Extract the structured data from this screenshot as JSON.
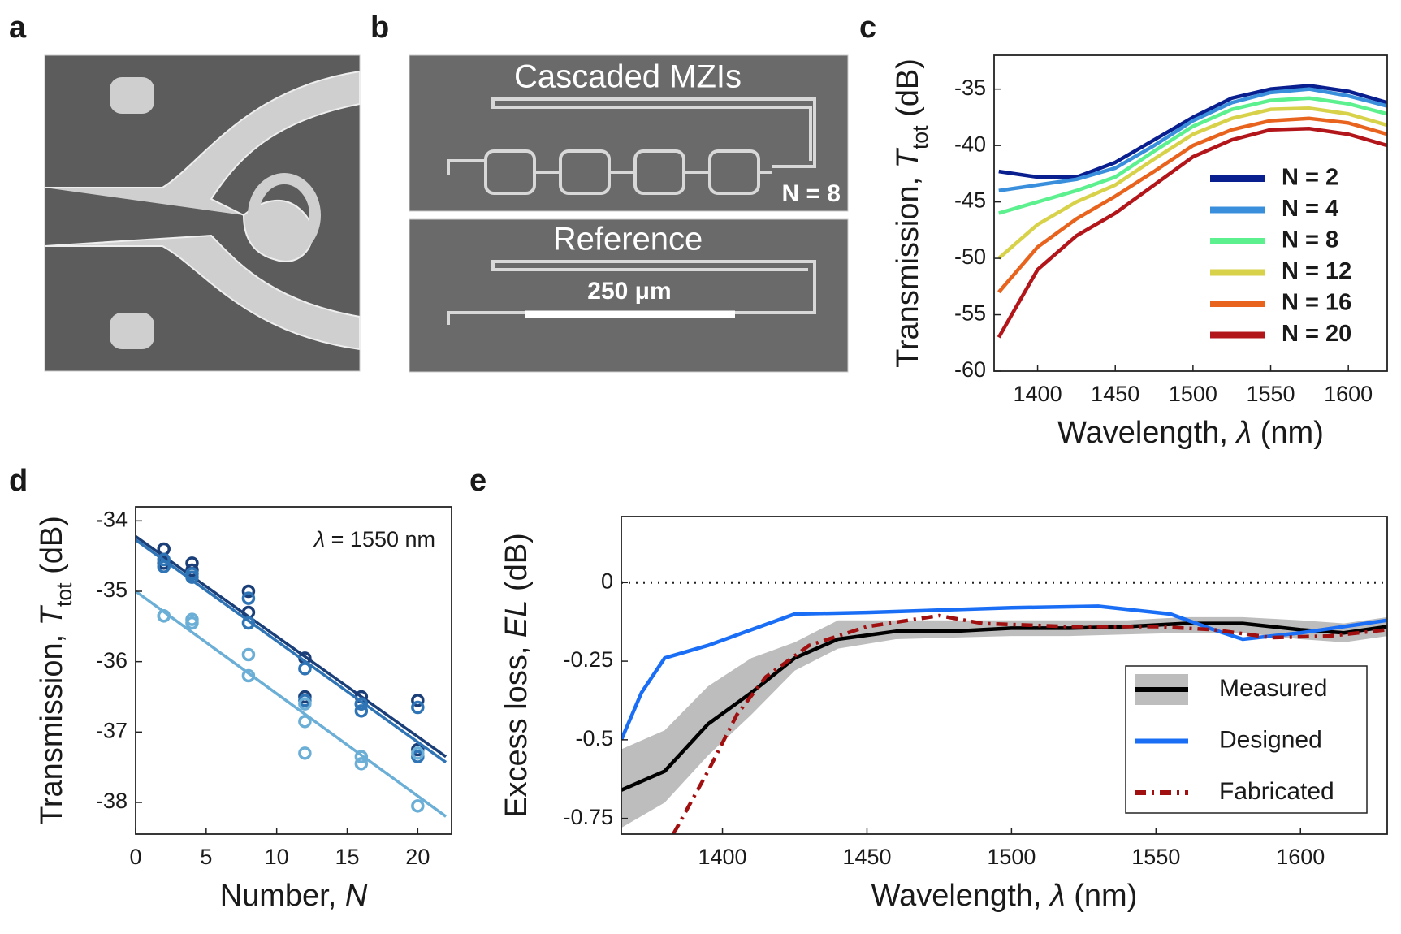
{
  "panel_labels": [
    "a",
    "b",
    "c",
    "d",
    "e"
  ],
  "micrographs": {
    "top_title": "Cascaded MZIs",
    "top_note": "N = 8",
    "bottom_title": "Reference",
    "scale_bar": "250 μm"
  },
  "chart_data": [
    {
      "type": "line",
      "x_label": [
        "Wavelength, ",
        "λ",
        " (nm)"
      ],
      "y_label": [
        "Transmission, ",
        "T",
        "tot",
        " (dB)"
      ],
      "xlim": [
        1372,
        1625
      ],
      "ylim": [
        -60,
        -32
      ],
      "xticks": [
        1400,
        1450,
        1500,
        1550,
        1600
      ],
      "yticks": [
        -60,
        -55,
        -50,
        -45,
        -40,
        -35
      ],
      "legend": "right",
      "x": [
        1375,
        1400,
        1425,
        1450,
        1475,
        1500,
        1525,
        1550,
        1575,
        1600,
        1625
      ],
      "series": [
        {
          "name": "N = 2",
          "color": "#0a1f8f",
          "values": [
            -42.3,
            -42.8,
            -42.8,
            -41.5,
            -39.5,
            -37.5,
            -35.8,
            -35,
            -34.7,
            -35.2,
            -36.2
          ]
        },
        {
          "name": "N = 4",
          "color": "#3a8fdc",
          "values": [
            -44,
            -43.5,
            -43,
            -42,
            -40,
            -37.8,
            -36.2,
            -35.3,
            -35,
            -35.6,
            -36.5
          ]
        },
        {
          "name": "N = 8",
          "color": "#5cf08f",
          "values": [
            -46,
            -45,
            -44,
            -42.8,
            -40.5,
            -38.3,
            -36.8,
            -36,
            -35.8,
            -36.3,
            -37.2
          ]
        },
        {
          "name": "N = 12",
          "color": "#d8d24a",
          "values": [
            -50,
            -47,
            -45,
            -43.5,
            -41.2,
            -39,
            -37.6,
            -36.8,
            -36.7,
            -37.2,
            -38.2
          ]
        },
        {
          "name": "N = 16",
          "color": "#e8641e",
          "values": [
            -53,
            -49,
            -46.5,
            -44.5,
            -42.3,
            -40,
            -38.6,
            -37.8,
            -37.6,
            -38,
            -39
          ]
        },
        {
          "name": "N = 20",
          "color": "#b3161a",
          "values": [
            -57,
            -51,
            -48,
            -46,
            -43.5,
            -41,
            -39.5,
            -38.6,
            -38.5,
            -39,
            -40
          ]
        }
      ]
    },
    {
      "type": "scatter",
      "x_label": [
        "Number, ",
        "N"
      ],
      "y_label": [
        "Transmission, ",
        "T",
        "tot",
        " (dB)"
      ],
      "annotation": [
        "λ",
        " = 1550 nm"
      ],
      "xlim": [
        0,
        22.4
      ],
      "ylim": [
        -38.45,
        -33.8
      ],
      "xticks": [
        0,
        5,
        10,
        15,
        20
      ],
      "yticks": [
        -38,
        -37,
        -36,
        -35,
        -34
      ],
      "series": [
        {
          "color": "#1a3e78",
          "x": [
            2,
            2,
            4,
            4,
            8,
            8,
            12,
            12,
            16,
            16,
            20,
            20
          ],
          "values": [
            -34.4,
            -34.6,
            -34.6,
            -34.7,
            -35.0,
            -35.3,
            -35.95,
            -36.5,
            -36.5,
            -36.6,
            -36.55,
            -37.25
          ],
          "fit_x": [
            0,
            22
          ],
          "fit_values": [
            -34.22,
            -37.35
          ]
        },
        {
          "color": "#2f74b5",
          "x": [
            2,
            2,
            4,
            4,
            8,
            8,
            12,
            12,
            16,
            16,
            20,
            20
          ],
          "values": [
            -34.55,
            -34.65,
            -34.75,
            -34.8,
            -35.1,
            -35.45,
            -36.1,
            -36.55,
            -36.6,
            -36.7,
            -36.65,
            -37.35
          ],
          "fit_x": [
            0,
            22
          ],
          "fit_values": [
            -34.27,
            -37.43
          ]
        },
        {
          "color": "#6baed6",
          "x": [
            2,
            2,
            4,
            4,
            8,
            8,
            12,
            12,
            12,
            16,
            16,
            20,
            20
          ],
          "values": [
            -35.35,
            -35.35,
            -35.4,
            -35.45,
            -35.9,
            -36.2,
            -36.6,
            -36.85,
            -37.3,
            -37.35,
            -37.45,
            -37.3,
            -38.05
          ],
          "fit_x": [
            0,
            22
          ],
          "fit_values": [
            -35.0,
            -38.2
          ]
        }
      ]
    },
    {
      "type": "line",
      "x_label": [
        "Wavelength, ",
        "λ",
        " (nm)"
      ],
      "y_label": [
        "Excess loss, ",
        "EL",
        " (dB)"
      ],
      "xlim": [
        1365,
        1630
      ],
      "ylim": [
        -0.8,
        0.21
      ],
      "xticks": [
        1400,
        1450,
        1500,
        1550,
        1600
      ],
      "yticks": [
        -0.75,
        -0.5,
        -0.25,
        0
      ],
      "hline": 0,
      "legend": "lower right",
      "series": [
        {
          "name": "Measured",
          "color": "#000000",
          "x": [
            1365,
            1380,
            1395,
            1410,
            1425,
            1440,
            1460,
            1480,
            1500,
            1520,
            1540,
            1560,
            1580,
            1600,
            1615,
            1630
          ],
          "values": [
            -0.66,
            -0.6,
            -0.45,
            -0.35,
            -0.24,
            -0.18,
            -0.155,
            -0.155,
            -0.145,
            -0.145,
            -0.14,
            -0.13,
            -0.13,
            -0.15,
            -0.16,
            -0.14
          ],
          "band_color": "#bdbdbd",
          "band_lower": [
            -0.78,
            -0.7,
            -0.55,
            -0.42,
            -0.28,
            -0.21,
            -0.18,
            -0.175,
            -0.17,
            -0.17,
            -0.165,
            -0.16,
            -0.16,
            -0.18,
            -0.19,
            -0.17
          ],
          "band_upper": [
            -0.53,
            -0.47,
            -0.33,
            -0.24,
            -0.19,
            -0.12,
            -0.12,
            -0.12,
            -0.12,
            -0.12,
            -0.12,
            -0.11,
            -0.11,
            -0.12,
            -0.13,
            -0.11
          ]
        },
        {
          "name": "Designed",
          "color": "#1a6ef5",
          "x": [
            1365,
            1372,
            1380,
            1395,
            1410,
            1425,
            1450,
            1500,
            1530,
            1555,
            1570,
            1580,
            1600,
            1615,
            1630
          ],
          "values": [
            -0.5,
            -0.35,
            -0.24,
            -0.2,
            -0.15,
            -0.1,
            -0.095,
            -0.08,
            -0.075,
            -0.1,
            -0.15,
            -0.18,
            -0.16,
            -0.14,
            -0.12
          ]
        },
        {
          "name": "Fabricated",
          "color": "#a01010",
          "dash": "14 7 3 7",
          "x": [
            1383,
            1395,
            1405,
            1415,
            1430,
            1450,
            1475,
            1490,
            1520,
            1550,
            1570,
            1590,
            1610,
            1630
          ],
          "values": [
            -0.8,
            -0.6,
            -0.42,
            -0.3,
            -0.2,
            -0.14,
            -0.105,
            -0.13,
            -0.14,
            -0.14,
            -0.15,
            -0.175,
            -0.17,
            -0.15
          ]
        }
      ]
    }
  ]
}
